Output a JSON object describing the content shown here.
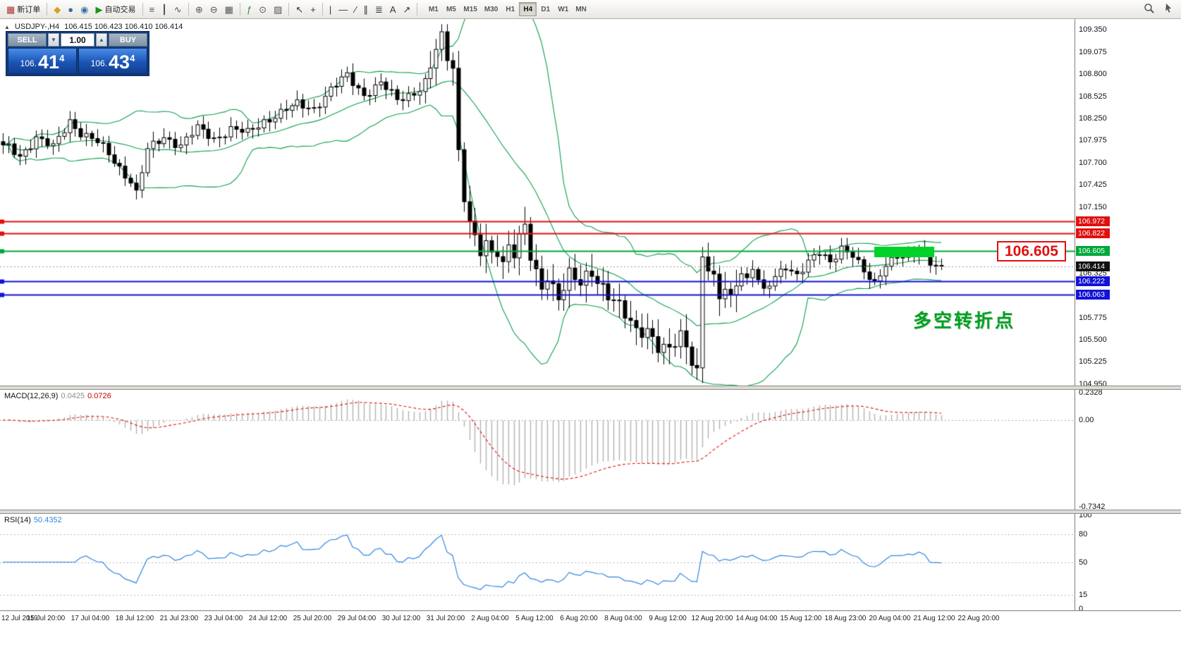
{
  "toolbar": {
    "items": [
      {
        "t": "btn",
        "name": "new-order-button",
        "icon": "new-order-icon",
        "glyph": "▦",
        "color": "#b03030",
        "label": "新订单"
      },
      {
        "t": "sep"
      },
      {
        "t": "btn",
        "name": "market-watch-button",
        "icon": "market-watch-icon",
        "glyph": "◆",
        "color": "#d8a020"
      },
      {
        "t": "btn",
        "name": "navigator-button",
        "icon": "navigator-icon",
        "glyph": "●",
        "color": "#3a6ea5"
      },
      {
        "t": "btn",
        "name": "terminal-button",
        "icon": "terminal-icon",
        "glyph": "◉",
        "color": "#3a6ea5"
      },
      {
        "t": "btn",
        "name": "autotrading-button",
        "icon": "autotrading-play-icon",
        "glyph": "▶",
        "color": "#159615",
        "label": "自动交易"
      },
      {
        "t": "sep"
      },
      {
        "t": "btn",
        "name": "bar-chart-button",
        "icon": "bar-chart-icon",
        "glyph": "≡",
        "color": "#555555"
      },
      {
        "t": "btn",
        "name": "candlestick-chart-button",
        "icon": "candlestick-chart-icon",
        "glyph": "┃",
        "color": "#555555"
      },
      {
        "t": "btn",
        "name": "line-chart-button",
        "icon": "line-chart-icon",
        "glyph": "∿",
        "color": "#555555"
      },
      {
        "t": "sep"
      },
      {
        "t": "btn",
        "name": "zoom-in-button",
        "icon": "zoom-in-icon",
        "glyph": "⊕",
        "color": "#555555"
      },
      {
        "t": "btn",
        "name": "zoom-out-button",
        "icon": "zoom-out-icon",
        "glyph": "⊖",
        "color": "#555555"
      },
      {
        "t": "btn",
        "name": "tile-windows-button",
        "icon": "tile-windows-icon",
        "glyph": "▦",
        "color": "#555555"
      },
      {
        "t": "sep"
      },
      {
        "t": "btn",
        "name": "indicators-button",
        "icon": "indicators-icon",
        "glyph": "ƒ",
        "color": "#2a8a4a"
      },
      {
        "t": "btn",
        "name": "periods-button",
        "icon": "periods-icon",
        "glyph": "⊙",
        "color": "#555555"
      },
      {
        "t": "btn",
        "name": "templates-button",
        "icon": "templates-icon",
        "glyph": "▨",
        "color": "#555555"
      },
      {
        "t": "sep"
      },
      {
        "t": "btn",
        "name": "cursor-button",
        "icon": "cursor-icon",
        "glyph": "↖",
        "color": "#333333"
      },
      {
        "t": "btn",
        "name": "crosshair-button",
        "icon": "crosshair-icon",
        "glyph": "+",
        "color": "#333333"
      },
      {
        "t": "sep"
      },
      {
        "t": "btn",
        "name": "vertical-line-button",
        "icon": "vertical-line-icon",
        "glyph": "|",
        "color": "#333333"
      },
      {
        "t": "btn",
        "name": "horizontal-line-button",
        "icon": "horizontal-line-icon",
        "glyph": "―",
        "color": "#333333"
      },
      {
        "t": "btn",
        "name": "trendline-button",
        "icon": "trendline-icon",
        "glyph": "∕",
        "color": "#333333"
      },
      {
        "t": "btn",
        "name": "channel-button",
        "icon": "channel-icon",
        "glyph": "∥",
        "color": "#333333"
      },
      {
        "t": "btn",
        "name": "fibonacci-button",
        "icon": "fibonacci-icon",
        "glyph": "≣",
        "color": "#333333"
      },
      {
        "t": "btn",
        "name": "text-button",
        "icon": "text-icon",
        "glyph": "A",
        "color": "#333333"
      },
      {
        "t": "btn",
        "name": "arrows-button",
        "icon": "arrow-icon",
        "glyph": "↗",
        "color": "#333333"
      },
      {
        "t": "sep"
      }
    ],
    "timeframes": [
      "M1",
      "M5",
      "M15",
      "M30",
      "H1",
      "H4",
      "D1",
      "W1",
      "MN"
    ],
    "active_timeframe": "H4"
  },
  "chart": {
    "symbol_period": "USDJPY-,H4",
    "ohlc": "106.415 106.423 106.410 106.414"
  },
  "trade_panel": {
    "sell_label": "SELL",
    "buy_label": "BUY",
    "volume": "1.00",
    "sell_price": {
      "prefix": "106.",
      "big": "41",
      "sup": "4"
    },
    "buy_price": {
      "prefix": "106.",
      "big": "43",
      "sup": "4"
    }
  },
  "price_axis": {
    "max": 109.484,
    "min": 104.93,
    "gridline_prices": [
      109.35,
      109.075,
      108.8,
      108.525,
      108.25,
      107.975,
      107.7,
      107.425,
      107.15,
      106.875,
      106.6,
      106.325,
      106.05,
      105.775,
      105.5,
      105.225,
      104.95
    ]
  },
  "hlines": [
    {
      "price": 106.972,
      "label": "106.972",
      "color": "#e01010",
      "width": 2
    },
    {
      "price": 106.822,
      "label": "106.822",
      "color": "#e01010",
      "width": 2
    },
    {
      "price": 106.605,
      "label": "106.605",
      "color": "#00a83c",
      "width": 2
    },
    {
      "price": 106.222,
      "label": "106.222",
      "color": "#1212d8",
      "width": 2
    },
    {
      "price": 106.063,
      "label": "106.063",
      "color": "#1212d8",
      "width": 2
    }
  ],
  "bid": {
    "price": 106.414,
    "label": "106.414",
    "color": "#111111"
  },
  "annotations": {
    "price_callout": "106.605",
    "callout_price": 106.605,
    "turning_point": "多空转折点",
    "highlight_box": {
      "from_bar": 157.0,
      "to_bar": 167.8,
      "top_price": 106.655,
      "bottom_price": 106.525,
      "color": "#00d22a"
    }
  },
  "macd": {
    "label": "MACD(12,26,9)",
    "main_value": "0.0425",
    "signal_value": "0.0726",
    "max": 0.2328,
    "min": -0.7342,
    "axis_labels": [
      {
        "v": 0.2328,
        "t": "0.2328"
      },
      {
        "v": 0,
        "t": "0.00"
      },
      {
        "v": -0.7342,
        "t": "-0.7342"
      }
    ],
    "histogram_color": "#b2b2b2",
    "signal_color": "#e01010"
  },
  "rsi": {
    "label": "RSI(14)",
    "value": "50.4352",
    "levels": [
      80,
      50,
      15
    ],
    "axis_labels": [
      {
        "v": 100,
        "t": "100"
      },
      {
        "v": 80,
        "t": "80"
      },
      {
        "v": 50,
        "t": "50"
      },
      {
        "v": 15,
        "t": "15"
      },
      {
        "v": 0,
        "t": "0"
      }
    ],
    "color": "#2e86e0"
  },
  "time_axis": {
    "labels": [
      "12 Jul 2019",
      "15 Jul 20:00",
      "17 Jul 04:00",
      "18 Jul 12:00",
      "21 Jul 23:00",
      "23 Jul 04:00",
      "24 Jul 12:00",
      "25 Jul 20:00",
      "29 Jul 04:00",
      "30 Jul 12:00",
      "31 Jul 20:00",
      "2 Aug 04:00",
      "5 Aug 12:00",
      "6 Aug 20:00",
      "8 Aug 04:00",
      "9 Aug 12:00",
      "12 Aug 20:00",
      "14 Aug 04:00",
      "15 Aug 12:00",
      "18 Aug 23:00",
      "20 Aug 04:00",
      "21 Aug 12:00",
      "22 Aug 20:00"
    ]
  },
  "chart_data": {
    "type": "candlestick",
    "symbol": "USDJPY-",
    "timeframe": "H4",
    "bar_count": 170,
    "visible_price_range": [
      104.95,
      109.35
    ],
    "current_ohlc": {
      "open": 106.415,
      "high": 106.423,
      "low": 106.41,
      "close": 106.414
    },
    "bollinger": {
      "period": 20,
      "deviation": 2,
      "color": "#0fa050"
    },
    "price_path": [
      [
        0,
        107.92
      ],
      [
        3,
        107.78
      ],
      [
        6,
        108.02
      ],
      [
        9,
        107.88
      ],
      [
        12,
        108.22
      ],
      [
        14,
        108.08
      ],
      [
        17,
        107.95
      ],
      [
        20,
        107.72
      ],
      [
        23,
        107.48
      ],
      [
        24,
        107.32
      ],
      [
        26,
        107.85
      ],
      [
        29,
        108.02
      ],
      [
        32,
        107.92
      ],
      [
        35,
        108.12
      ],
      [
        38,
        108.0
      ],
      [
        41,
        108.12
      ],
      [
        44,
        108.06
      ],
      [
        47,
        108.22
      ],
      [
        50,
        108.32
      ],
      [
        53,
        108.42
      ],
      [
        56,
        108.38
      ],
      [
        59,
        108.6
      ],
      [
        62,
        108.78
      ],
      [
        65,
        108.55
      ],
      [
        68,
        108.68
      ],
      [
        71,
        108.48
      ],
      [
        74,
        108.58
      ],
      [
        76,
        108.66
      ],
      [
        78,
        109.08
      ],
      [
        79,
        109.22
      ],
      [
        80,
        109.02
      ],
      [
        81,
        108.92
      ],
      [
        82,
        107.85
      ],
      [
        83,
        107.32
      ],
      [
        84,
        106.98
      ],
      [
        85,
        106.72
      ],
      [
        86,
        106.56
      ],
      [
        87,
        106.66
      ],
      [
        88,
        106.52
      ],
      [
        89,
        106.62
      ],
      [
        90,
        106.48
      ],
      [
        91,
        106.7
      ],
      [
        92,
        106.62
      ],
      [
        93,
        106.76
      ],
      [
        94,
        106.88
      ],
      [
        95,
        106.5
      ],
      [
        96,
        106.28
      ],
      [
        97,
        106.12
      ],
      [
        98,
        106.32
      ],
      [
        99,
        106.18
      ],
      [
        100,
        106.06
      ],
      [
        102,
        106.3
      ],
      [
        104,
        106.16
      ],
      [
        106,
        106.34
      ],
      [
        108,
        106.18
      ],
      [
        110,
        106.0
      ],
      [
        112,
        105.78
      ],
      [
        114,
        105.58
      ],
      [
        116,
        105.66
      ],
      [
        118,
        105.44
      ],
      [
        120,
        105.34
      ],
      [
        122,
        105.52
      ],
      [
        124,
        105.28
      ],
      [
        125,
        105.14
      ],
      [
        126,
        106.58
      ],
      [
        127,
        106.42
      ],
      [
        128,
        106.22
      ],
      [
        129,
        105.98
      ],
      [
        130,
        106.12
      ],
      [
        131,
        105.96
      ],
      [
        132,
        106.22
      ],
      [
        133,
        106.36
      ],
      [
        134,
        106.26
      ],
      [
        135,
        106.42
      ],
      [
        137,
        106.08
      ],
      [
        139,
        106.26
      ],
      [
        141,
        106.42
      ],
      [
        143,
        106.32
      ],
      [
        145,
        106.46
      ],
      [
        147,
        106.56
      ],
      [
        149,
        106.46
      ],
      [
        151,
        106.66
      ],
      [
        153,
        106.56
      ],
      [
        155,
        106.32
      ],
      [
        157,
        106.18
      ],
      [
        159,
        106.46
      ],
      [
        161,
        106.56
      ],
      [
        163,
        106.5
      ],
      [
        165,
        106.6
      ],
      [
        167,
        106.48
      ],
      [
        169,
        106.414
      ]
    ]
  },
  "colors": {
    "candle_outline": "#000000",
    "candle_up_fill": "#ffffff",
    "candle_down_fill": "#000000",
    "background": "#ffffff"
  }
}
